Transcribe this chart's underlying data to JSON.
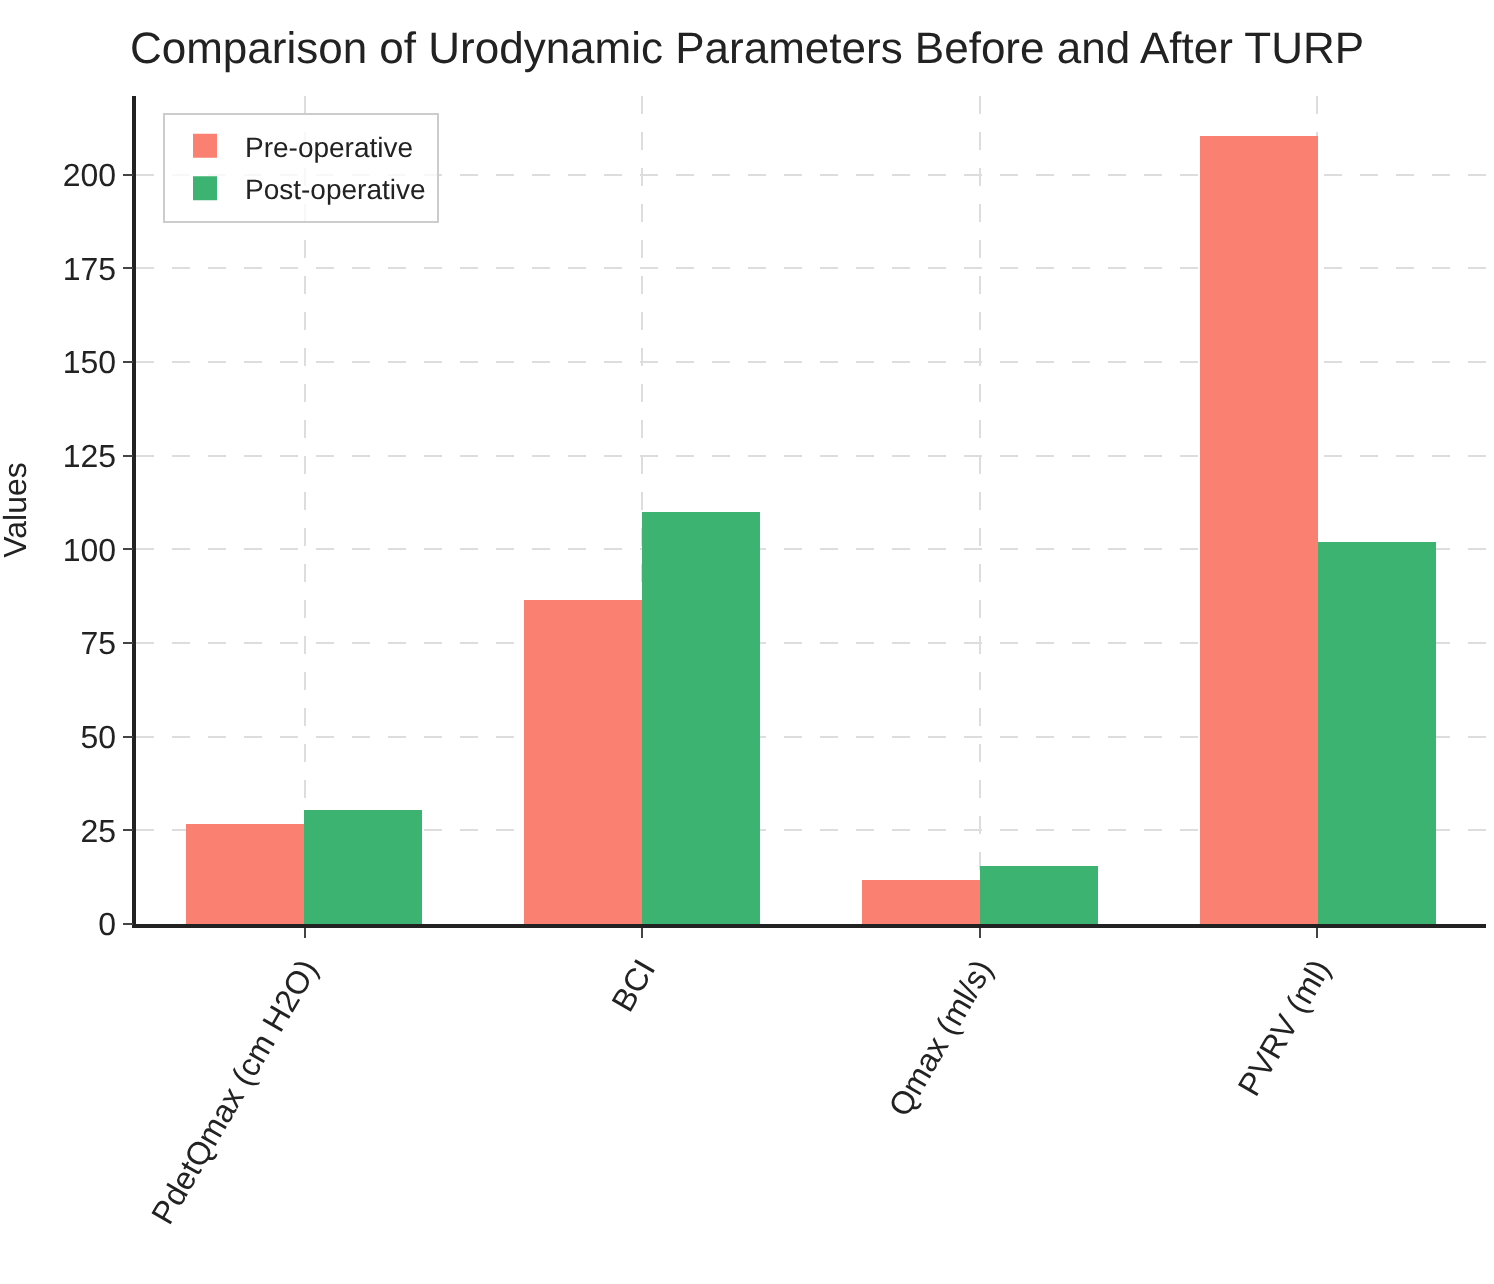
{
  "chart_data": {
    "type": "bar",
    "title": "Comparison of Urodynamic Parameters Before and After TURP",
    "ylabel": "Values",
    "categories": [
      "PdetQmax (cm H2O)",
      "BCI",
      "Qmax (ml/s)",
      "PVRV (ml)"
    ],
    "series": [
      {
        "name": "Pre-operative",
        "color": "#fa8072",
        "values": [
          26.8,
          86.4,
          11.8,
          210.4
        ]
      },
      {
        "name": "Post-operative",
        "color": "#3cb371",
        "values": [
          30.4,
          110,
          15.5,
          102.1
        ]
      }
    ],
    "ylim": [
      0,
      221
    ],
    "yticks": [
      0,
      25,
      50,
      75,
      100,
      125,
      150,
      175,
      200
    ],
    "grid": true,
    "legend": "top left"
  }
}
